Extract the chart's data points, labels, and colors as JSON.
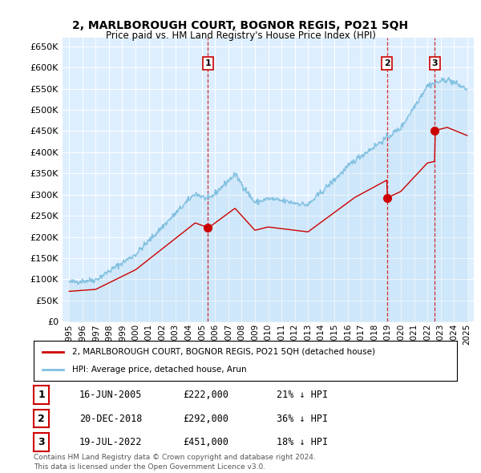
{
  "title": "2, MARLBOROUGH COURT, BOGNOR REGIS, PO21 5QH",
  "subtitle": "Price paid vs. HM Land Registry's House Price Index (HPI)",
  "hpi_color": "#7fbfdf",
  "hpi_fill_color": "#d6eaf8",
  "price_color": "#cc0000",
  "vline_color": "#cc0000",
  "background_color": "#ddeeff",
  "legend_label_price": "2, MARLBOROUGH COURT, BOGNOR REGIS, PO21 5QH (detached house)",
  "legend_label_hpi": "HPI: Average price, detached house, Arun",
  "footer": "Contains HM Land Registry data © Crown copyright and database right 2024.\nThis data is licensed under the Open Government Licence v3.0.",
  "transactions": [
    {
      "num": 1,
      "date": "16-JUN-2005",
      "date_x": 2005.46,
      "price": 222000,
      "pct": "21%"
    },
    {
      "num": 2,
      "date": "20-DEC-2018",
      "date_x": 2018.96,
      "price": 292000,
      "pct": "36%"
    },
    {
      "num": 3,
      "date": "19-JUL-2022",
      "date_x": 2022.55,
      "price": 451000,
      "pct": "18%"
    }
  ],
  "ylim": [
    0,
    670000
  ],
  "yticks": [
    0,
    50000,
    100000,
    150000,
    200000,
    250000,
    300000,
    350000,
    400000,
    450000,
    500000,
    550000,
    600000,
    650000
  ],
  "xlim": [
    1994.5,
    2025.5
  ],
  "xticks": [
    1995,
    1996,
    1997,
    1998,
    1999,
    2000,
    2001,
    2002,
    2003,
    2004,
    2005,
    2006,
    2007,
    2008,
    2009,
    2010,
    2011,
    2012,
    2013,
    2014,
    2015,
    2016,
    2017,
    2018,
    2019,
    2020,
    2021,
    2022,
    2023,
    2024,
    2025
  ]
}
